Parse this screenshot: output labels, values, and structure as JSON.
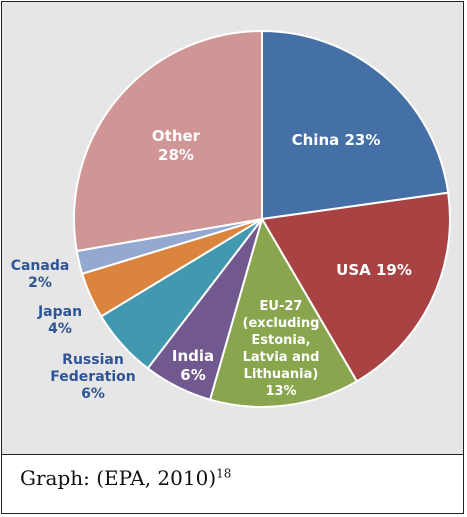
{
  "chart_data": {
    "type": "pie",
    "slices": [
      {
        "name": "China",
        "label_lines": [
          "China 23%"
        ],
        "value": 23,
        "color": "#4570a6"
      },
      {
        "name": "USA",
        "label_lines": [
          "USA 19%"
        ],
        "value": 19,
        "color": "#a94243"
      },
      {
        "name": "EU-27 (excluding Estonia, Latvia and Lithuania)",
        "label_lines": [
          "EU-27",
          "(excluding",
          "Estonia,",
          "Latvia and",
          "Lithuania)",
          "13%"
        ],
        "value": 13,
        "color": "#89a54e"
      },
      {
        "name": "India",
        "label_lines": [
          "India",
          "6%"
        ],
        "value": 6,
        "color": "#71588f"
      },
      {
        "name": "Russian Federation",
        "label_lines": [
          "Russian",
          "Federation",
          "6%"
        ],
        "value": 6,
        "color": "#4198af"
      },
      {
        "name": "Japan",
        "label_lines": [
          "Japan",
          "4%"
        ],
        "value": 4,
        "color": "#db843d"
      },
      {
        "name": "Canada",
        "label_lines": [
          "Canada",
          "2%"
        ],
        "value": 2,
        "color": "#93a9cf"
      },
      {
        "name": "Other",
        "label_lines": [
          "Other",
          "28%"
        ],
        "value": 28,
        "color": "#d09595"
      }
    ]
  },
  "caption": {
    "text": "Graph: (EPA, 2010)",
    "superscript": "18"
  }
}
